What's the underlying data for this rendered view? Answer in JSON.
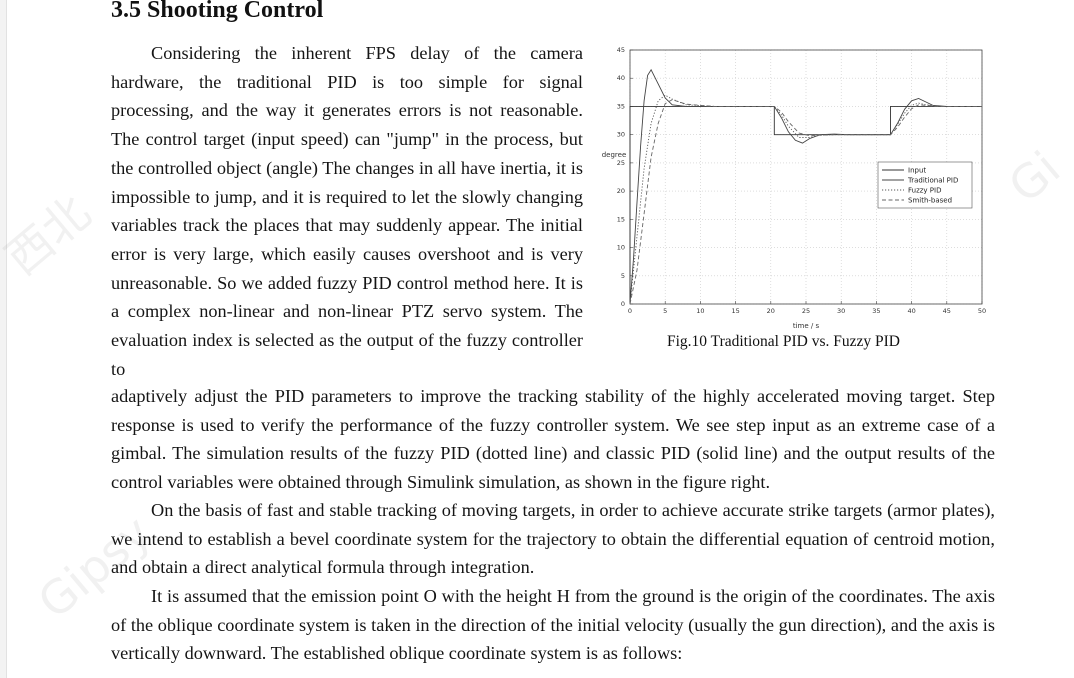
{
  "section": {
    "heading": "3.5 Shooting Control"
  },
  "paragraphs": {
    "p1_wrapped": "Considering the inherent FPS delay of the camera hardware, the traditional PID is too simple for signal processing, and the way it generates errors is not reasonable. The control target (input speed) can \"jump\" in the process, but the controlled object (angle) The changes in all have inertia, it is impossible to jump, and it is required to let the slowly changing variables track the places that may suddenly appear. The initial error is very large, which easily causes overshoot and is very unreasonable. So we added fuzzy PID control method here. It is a complex non-linear and non-linear PTZ servo system. The evaluation index is selected as the output of the fuzzy controller to",
    "p1_full": "adaptively adjust the PID parameters to improve the tracking stability of the highly accelerated moving target. Step response is used to verify the performance of the fuzzy controller system. We see step input as an extreme case of a gimbal. The simulation results of the fuzzy PID (dotted line) and classic PID (solid line) and the output results of the control variables were obtained through Simulink simulation, as shown in the figure right.",
    "p2": "On the basis of fast and stable tracking of moving targets, in order to achieve accurate strike targets (armor plates), we intend to establish a bevel coordinate system for the trajectory to obtain the differential equation of centroid motion, and obtain a direct analytical formula through integration.",
    "p3": "It is assumed that the emission point O with the height H from the ground is the origin of the coordinates. The axis of the oblique coordinate system is taken in the direction of the initial velocity (usually the gun direction), and the axis is vertically downward. The established oblique coordinate system is as follows:"
  },
  "figure": {
    "caption": "Fig.10 Traditional PID vs. Fuzzy PID"
  },
  "chart_data": {
    "type": "line",
    "xlabel": "time / s",
    "ylabel": "degree",
    "xlim": [
      0,
      50
    ],
    "ylim": [
      0,
      45
    ],
    "x_ticks": [
      "0",
      "5",
      "10",
      "15",
      "20",
      "25",
      "30",
      "35",
      "40",
      "45",
      "50"
    ],
    "y_ticks": [
      "0",
      "5",
      "10",
      "15",
      "20",
      "25",
      "30",
      "35",
      "40",
      "45"
    ],
    "grid": true,
    "legend_position": "right",
    "series": [
      {
        "name": "Input",
        "style": "solid",
        "x": [
          0,
          0,
          20.5,
          20.5,
          37,
          37,
          50
        ],
        "y": [
          0,
          35,
          35,
          30,
          30,
          35,
          35
        ]
      },
      {
        "name": "Traditional PID",
        "style": "solid",
        "x": [
          0,
          0.5,
          1,
          1.5,
          2,
          2.5,
          3,
          4,
          5,
          6,
          8,
          12,
          20.5,
          21.5,
          22.5,
          23.5,
          24.5,
          25.5,
          27,
          29,
          31,
          37,
          38,
          39,
          40,
          41,
          42,
          43,
          45,
          50
        ],
        "y": [
          0,
          8,
          18,
          28,
          36,
          40.5,
          41.5,
          39,
          36.5,
          35.3,
          35,
          35,
          35,
          33,
          30.5,
          29,
          28.5,
          29.3,
          30,
          30.1,
          30,
          30,
          32,
          34.5,
          36,
          36.4,
          35.8,
          35.2,
          35,
          35
        ]
      },
      {
        "name": "Fuzzy PID",
        "style": "dotted",
        "x": [
          0,
          1,
          2,
          3,
          4,
          5,
          6,
          8,
          12,
          20.5,
          21.5,
          22.5,
          24,
          25.5,
          27,
          29,
          31,
          37,
          38,
          39,
          40,
          41,
          42,
          44,
          50
        ],
        "y": [
          0,
          12,
          24,
          32,
          36,
          37,
          36.3,
          35.3,
          35,
          35,
          33.5,
          31.5,
          29.5,
          29.5,
          29.9,
          30,
          30,
          30,
          31.8,
          33.8,
          35.2,
          35.6,
          35.3,
          35,
          35
        ]
      },
      {
        "name": "Smith-based",
        "style": "dashed",
        "x": [
          0,
          1,
          2,
          3,
          4,
          5,
          6,
          8,
          12,
          20.5,
          21.5,
          22.5,
          24,
          25.5,
          27,
          29,
          31,
          37,
          38,
          39,
          40,
          41,
          42,
          44,
          50
        ],
        "y": [
          0,
          6,
          16,
          26,
          32,
          35.5,
          36.2,
          35.4,
          35,
          35,
          34,
          32.3,
          30.3,
          29.8,
          29.9,
          30,
          30,
          30,
          31.3,
          33.1,
          34.6,
          35.3,
          35.2,
          35,
          35
        ]
      }
    ]
  }
}
